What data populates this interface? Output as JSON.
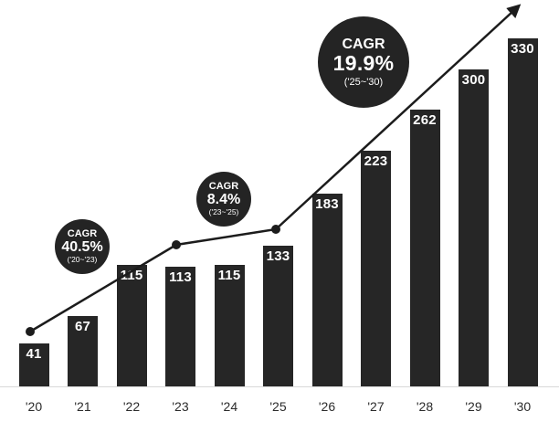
{
  "chart_data": {
    "type": "bar",
    "title": "",
    "xlabel": "",
    "ylabel": "",
    "categories": [
      "'20",
      "'21",
      "'22",
      "'23",
      "'24",
      "'25",
      "'26",
      "'27",
      "'28",
      "'29",
      "'30"
    ],
    "values": [
      41,
      67,
      115,
      113,
      115,
      133,
      183,
      223,
      262,
      300,
      330
    ],
    "ylim": [
      0,
      360
    ],
    "grid": false,
    "legend": "none",
    "value_labels_position": "inside-top",
    "trend_line": {
      "style": "straight segments ending in arrow",
      "dot_years": [
        "'20",
        "'23",
        "'25"
      ],
      "arrow_end": "above '30"
    },
    "annotations": [
      {
        "label": "CAGR",
        "value": "40.5%",
        "period": "('20~'23)",
        "size": "small"
      },
      {
        "label": "CAGR",
        "value": "8.4%",
        "period": "('23~'25)",
        "size": "small"
      },
      {
        "label": "CAGR",
        "value": "19.9%",
        "period": "('25~'30)",
        "size": "large"
      }
    ]
  },
  "colors": {
    "background": "#ffffff",
    "bar": "#262626",
    "bubble": "#242424",
    "trend_line": "#1c1c1c",
    "axis_line": "#d9d9d9",
    "tick_label": "#2b2b2b",
    "value_label": "#ffffff"
  }
}
